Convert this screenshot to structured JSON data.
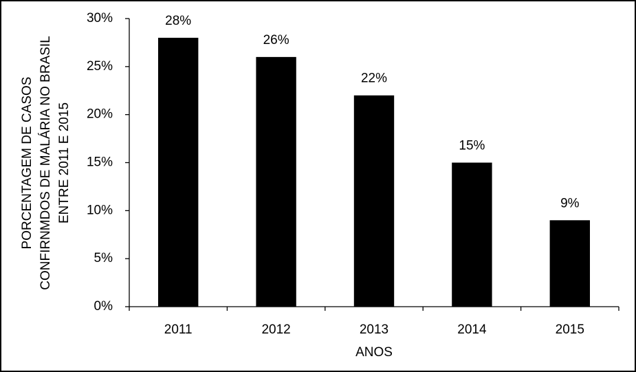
{
  "chart_data": {
    "type": "bar",
    "y_label": [
      "PORCENTAGEM DE CASOS",
      "CONFIRNMDOS DE MALÁRIA NO BRASIL",
      "ENTRE 2011 E 2015"
    ],
    "x_label": "ANOS",
    "categories": [
      "2011",
      "2012",
      "2013",
      "2014",
      "2015"
    ],
    "values": [
      28,
      26,
      22,
      15,
      9
    ],
    "value_labels": [
      "28%",
      "26%",
      "22%",
      "15%",
      "9%"
    ],
    "color": "#000000",
    "ylim": [
      0,
      30
    ],
    "yticks": [
      {
        "value": 0,
        "label": "0%"
      },
      {
        "value": 5,
        "label": "5%"
      },
      {
        "value": 10,
        "label": "10%"
      },
      {
        "value": 15,
        "label": "15%"
      },
      {
        "value": 20,
        "label": "20%"
      },
      {
        "value": 25,
        "label": "25%"
      },
      {
        "value": 30,
        "label": "30%"
      }
    ],
    "grid": false
  }
}
